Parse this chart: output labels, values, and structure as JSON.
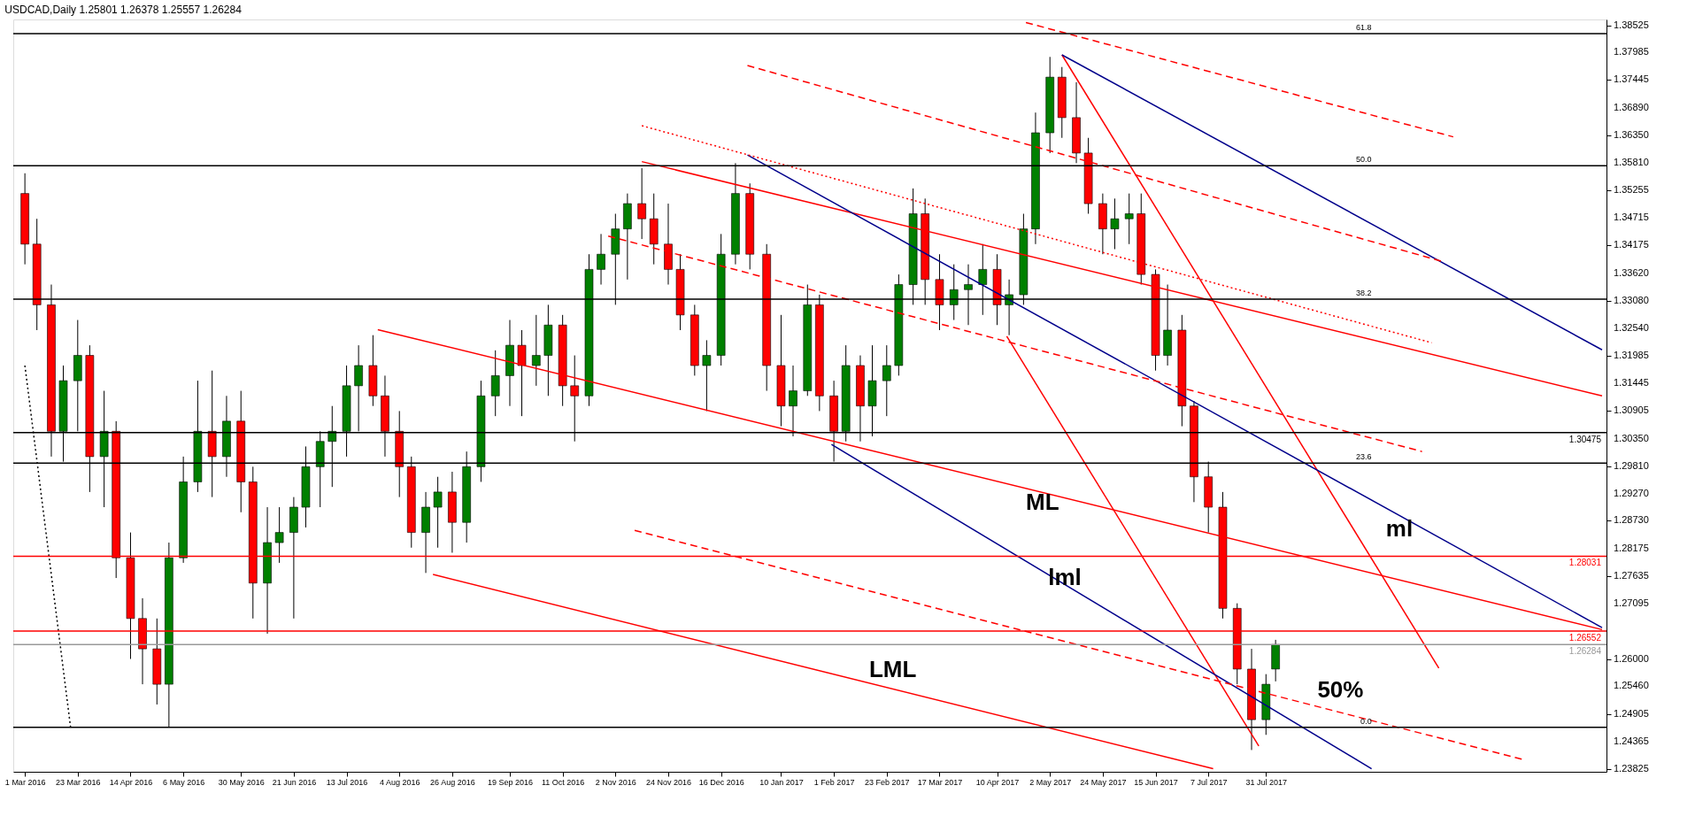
{
  "chart_data": {
    "type": "candlestick",
    "title": "USDCAD,Daily  1.25801 1.26378 1.25557 1.26284",
    "x": [
      "2016-03-01",
      "2016-03-06",
      "2016-03-12",
      "2016-03-17",
      "2016-03-23",
      "2016-03-28",
      "2016-04-03",
      "2016-04-08",
      "2016-04-14",
      "2016-04-19",
      "2016-04-25",
      "2016-04-30",
      "2016-05-06",
      "2016-05-12",
      "2016-05-18",
      "2016-05-24",
      "2016-05-30",
      "2016-06-04",
      "2016-06-10",
      "2016-06-15",
      "2016-06-21",
      "2016-06-26",
      "2016-07-02",
      "2016-07-07",
      "2016-07-13",
      "2016-07-18",
      "2016-07-24",
      "2016-07-29",
      "2016-08-04",
      "2016-08-09",
      "2016-08-15",
      "2016-08-20",
      "2016-08-26",
      "2016-09-01",
      "2016-09-07",
      "2016-09-13",
      "2016-09-19",
      "2016-09-24",
      "2016-09-30",
      "2016-10-05",
      "2016-10-11",
      "2016-10-16",
      "2016-10-22",
      "2016-10-27",
      "2016-11-02",
      "2016-11-07",
      "2016-11-13",
      "2016-11-18",
      "2016-11-24",
      "2016-11-29",
      "2016-12-05",
      "2016-12-10",
      "2016-12-16",
      "2016-12-22",
      "2016-12-28",
      "2017-01-04",
      "2017-01-10",
      "2017-01-15",
      "2017-01-21",
      "2017-01-26",
      "2017-02-01",
      "2017-02-06",
      "2017-02-12",
      "2017-02-17",
      "2017-02-23",
      "2017-02-28",
      "2017-03-06",
      "2017-03-11",
      "2017-03-17",
      "2017-03-23",
      "2017-03-29",
      "2017-04-04",
      "2017-04-10",
      "2017-04-15",
      "2017-04-21",
      "2017-04-26",
      "2017-05-02",
      "2017-05-07",
      "2017-05-13",
      "2017-05-18",
      "2017-05-24",
      "2017-05-29",
      "2017-06-04",
      "2017-06-09",
      "2017-06-15",
      "2017-06-20",
      "2017-06-26",
      "2017-07-01",
      "2017-07-07",
      "2017-07-13",
      "2017-07-19",
      "2017-07-25",
      "2017-07-31",
      "2017-08-04"
    ],
    "ohlc": [
      [
        1.352,
        1.356,
        1.338,
        1.342
      ],
      [
        1.342,
        1.347,
        1.325,
        1.33
      ],
      [
        1.33,
        1.334,
        1.3,
        1.305
      ],
      [
        1.305,
        1.318,
        1.299,
        1.315
      ],
      [
        1.315,
        1.327,
        1.305,
        1.32
      ],
      [
        1.32,
        1.322,
        1.293,
        1.3
      ],
      [
        1.3,
        1.313,
        1.29,
        1.305
      ],
      [
        1.305,
        1.307,
        1.276,
        1.28
      ],
      [
        1.28,
        1.285,
        1.26,
        1.268
      ],
      [
        1.268,
        1.272,
        1.255,
        1.262
      ],
      [
        1.262,
        1.268,
        1.251,
        1.255
      ],
      [
        1.255,
        1.283,
        1.2466,
        1.28
      ],
      [
        1.28,
        1.3,
        1.279,
        1.295
      ],
      [
        1.295,
        1.315,
        1.293,
        1.305
      ],
      [
        1.305,
        1.317,
        1.292,
        1.3
      ],
      [
        1.3,
        1.312,
        1.296,
        1.307
      ],
      [
        1.307,
        1.313,
        1.289,
        1.295
      ],
      [
        1.295,
        1.298,
        1.268,
        1.275
      ],
      [
        1.275,
        1.29,
        1.265,
        1.283
      ],
      [
        1.283,
        1.29,
        1.279,
        1.285
      ],
      [
        1.285,
        1.292,
        1.268,
        1.29
      ],
      [
        1.29,
        1.302,
        1.286,
        1.298
      ],
      [
        1.298,
        1.305,
        1.29,
        1.303
      ],
      [
        1.303,
        1.31,
        1.294,
        1.305
      ],
      [
        1.305,
        1.318,
        1.3,
        1.314
      ],
      [
        1.314,
        1.322,
        1.305,
        1.318
      ],
      [
        1.318,
        1.324,
        1.31,
        1.312
      ],
      [
        1.312,
        1.316,
        1.3,
        1.305
      ],
      [
        1.305,
        1.309,
        1.292,
        1.298
      ],
      [
        1.298,
        1.3,
        1.282,
        1.285
      ],
      [
        1.285,
        1.293,
        1.277,
        1.29
      ],
      [
        1.29,
        1.296,
        1.282,
        1.293
      ],
      [
        1.293,
        1.297,
        1.281,
        1.287
      ],
      [
        1.287,
        1.301,
        1.283,
        1.298
      ],
      [
        1.298,
        1.315,
        1.295,
        1.312
      ],
      [
        1.312,
        1.321,
        1.308,
        1.316
      ],
      [
        1.316,
        1.327,
        1.31,
        1.322
      ],
      [
        1.322,
        1.325,
        1.308,
        1.318
      ],
      [
        1.318,
        1.328,
        1.314,
        1.32
      ],
      [
        1.32,
        1.33,
        1.312,
        1.326
      ],
      [
        1.326,
        1.328,
        1.31,
        1.314
      ],
      [
        1.314,
        1.32,
        1.303,
        1.312
      ],
      [
        1.312,
        1.34,
        1.31,
        1.337
      ],
      [
        1.337,
        1.344,
        1.334,
        1.34
      ],
      [
        1.34,
        1.348,
        1.33,
        1.345
      ],
      [
        1.345,
        1.352,
        1.335,
        1.35
      ],
      [
        1.35,
        1.357,
        1.343,
        1.347
      ],
      [
        1.347,
        1.352,
        1.338,
        1.342
      ],
      [
        1.342,
        1.35,
        1.334,
        1.337
      ],
      [
        1.337,
        1.34,
        1.325,
        1.328
      ],
      [
        1.328,
        1.33,
        1.316,
        1.318
      ],
      [
        1.318,
        1.323,
        1.309,
        1.32
      ],
      [
        1.32,
        1.344,
        1.318,
        1.34
      ],
      [
        1.34,
        1.358,
        1.338,
        1.352
      ],
      [
        1.352,
        1.354,
        1.337,
        1.34
      ],
      [
        1.34,
        1.342,
        1.313,
        1.318
      ],
      [
        1.318,
        1.328,
        1.306,
        1.31
      ],
      [
        1.31,
        1.318,
        1.304,
        1.313
      ],
      [
        1.313,
        1.334,
        1.312,
        1.33
      ],
      [
        1.33,
        1.332,
        1.309,
        1.312
      ],
      [
        1.312,
        1.315,
        1.299,
        1.305
      ],
      [
        1.305,
        1.322,
        1.303,
        1.318
      ],
      [
        1.318,
        1.32,
        1.303,
        1.31
      ],
      [
        1.31,
        1.322,
        1.304,
        1.315
      ],
      [
        1.315,
        1.322,
        1.308,
        1.318
      ],
      [
        1.318,
        1.336,
        1.316,
        1.334
      ],
      [
        1.334,
        1.353,
        1.33,
        1.348
      ],
      [
        1.348,
        1.351,
        1.33,
        1.335
      ],
      [
        1.335,
        1.34,
        1.325,
        1.33
      ],
      [
        1.33,
        1.338,
        1.327,
        1.333
      ],
      [
        1.333,
        1.338,
        1.326,
        1.334
      ],
      [
        1.334,
        1.342,
        1.328,
        1.337
      ],
      [
        1.337,
        1.34,
        1.326,
        1.33
      ],
      [
        1.33,
        1.335,
        1.324,
        1.332
      ],
      [
        1.332,
        1.348,
        1.33,
        1.345
      ],
      [
        1.345,
        1.368,
        1.342,
        1.364
      ],
      [
        1.364,
        1.379,
        1.36,
        1.375
      ],
      [
        1.375,
        1.377,
        1.363,
        1.367
      ],
      [
        1.367,
        1.374,
        1.358,
        1.36
      ],
      [
        1.36,
        1.363,
        1.348,
        1.35
      ],
      [
        1.35,
        1.352,
        1.34,
        1.345
      ],
      [
        1.345,
        1.351,
        1.341,
        1.347
      ],
      [
        1.347,
        1.352,
        1.342,
        1.348
      ],
      [
        1.348,
        1.352,
        1.334,
        1.336
      ],
      [
        1.336,
        1.337,
        1.317,
        1.32
      ],
      [
        1.32,
        1.334,
        1.318,
        1.325
      ],
      [
        1.325,
        1.328,
        1.306,
        1.31
      ],
      [
        1.31,
        1.311,
        1.291,
        1.296
      ],
      [
        1.296,
        1.299,
        1.285,
        1.29
      ],
      [
        1.29,
        1.293,
        1.268,
        1.27
      ],
      [
        1.27,
        1.271,
        1.255,
        1.258
      ],
      [
        1.258,
        1.262,
        1.242,
        1.248
      ],
      [
        1.248,
        1.257,
        1.245,
        1.255
      ],
      [
        1.25801,
        1.26378,
        1.25557,
        1.26284
      ]
    ],
    "series": [
      {
        "type": "line",
        "color": "#ff0000",
        "line_style": "solid",
        "x": [
          "2016-11-13",
          "2017-12-18"
        ],
        "values": [
          1.3583,
          1.312
        ]
      },
      {
        "type": "line",
        "color": "#ff0000",
        "line_style": "solid",
        "x": [
          "2016-07-26",
          "2017-12-18"
        ],
        "values": [
          1.3251,
          1.2658
        ]
      },
      {
        "type": "line",
        "color": "#ff0000",
        "line_style": "solid",
        "x": [
          "2016-08-18",
          "2017-07-09"
        ],
        "values": [
          1.2767,
          1.2383
        ]
      },
      {
        "type": "line",
        "color": "#ff0000",
        "line_style": "solid",
        "x": [
          "2017-04-14",
          "2017-07-28"
        ],
        "values": [
          1.3238,
          1.2428
        ]
      },
      {
        "type": "line",
        "color": "#ff0000",
        "line_style": "solid",
        "x": [
          "2017-05-07",
          "2017-10-11"
        ],
        "values": [
          1.3794,
          1.2582
        ]
      },
      {
        "type": "line",
        "color": "#00008b",
        "line_style": "solid",
        "x": [
          "2016-12-27",
          "2017-12-18"
        ],
        "values": [
          1.3596,
          1.2662
        ]
      },
      {
        "type": "line",
        "color": "#00008b",
        "line_style": "solid",
        "x": [
          "2017-05-07",
          "2017-12-18"
        ],
        "values": [
          1.3794,
          1.3211
        ]
      },
      {
        "type": "line",
        "color": "#00008b",
        "line_style": "solid",
        "x": [
          "2017-01-31",
          "2017-09-13"
        ],
        "values": [
          1.3024,
          1.2383
        ]
      },
      {
        "type": "line",
        "color": "#ff0000",
        "line_style": "dashed",
        "x": [
          "2016-12-27",
          "2017-10-13"
        ],
        "values": [
          1.3773,
          1.3385
        ]
      },
      {
        "type": "line",
        "color": "#ff0000",
        "line_style": "dashed",
        "x": [
          "2017-04-22",
          "2017-10-17"
        ],
        "values": [
          1.3858,
          1.3632
        ]
      },
      {
        "type": "line",
        "color": "#ff0000",
        "line_style": "dotted",
        "x": [
          "2016-11-13",
          "2017-10-08"
        ],
        "values": [
          1.3654,
          1.3225
        ]
      },
      {
        "type": "line",
        "color": "#ff0000",
        "line_style": "dashed",
        "x": [
          "2016-10-30",
          "2017-10-04"
        ],
        "values": [
          1.3436,
          1.301
        ]
      },
      {
        "type": "line",
        "color": "#ff0000",
        "line_style": "dashed",
        "x": [
          "2016-11-10",
          "2017-11-16"
        ],
        "values": [
          1.2854,
          1.24
        ]
      },
      {
        "type": "line",
        "color": "#000000",
        "line_style": "dotted",
        "x": [
          "2016-03-01",
          "2016-03-20"
        ],
        "values": [
          1.318,
          1.2466
        ]
      }
    ],
    "ref_lines": [
      {
        "axis": "y",
        "value": 1.3836,
        "color": "#000000"
      },
      {
        "axis": "y",
        "value": 1.3575,
        "color": "#000000"
      },
      {
        "axis": "y",
        "value": 1.3311,
        "color": "#000000"
      },
      {
        "axis": "y",
        "value": 1.2987,
        "color": "#000000"
      },
      {
        "axis": "y",
        "value": 1.2465,
        "color": "#000000"
      },
      {
        "axis": "y",
        "value": 1.30475,
        "label": "1.30475",
        "color": "#000000"
      },
      {
        "axis": "y",
        "value": 1.28031,
        "label": "1.28031",
        "color": "#ff0000"
      },
      {
        "axis": "y",
        "value": 1.26552,
        "label": "1.26552",
        "color": "#ff0000"
      },
      {
        "axis": "y",
        "value": 1.26284,
        "label": "1.26284",
        "color": "#999999"
      }
    ],
    "annotations": [
      "ML",
      "ml",
      "lml",
      "LML",
      "50%",
      {
        "text": "61.8",
        "x": "2017-09-13",
        "y": 1.3836
      },
      {
        "text": "50.0",
        "x": "2017-09-13",
        "y": 1.3575
      },
      {
        "text": "38.2",
        "x": "2017-09-13",
        "y": 1.3311
      },
      {
        "text": "23.6",
        "x": "2017-09-13",
        "y": 1.2987
      },
      {
        "text": "0.0",
        "x": "2017-09-13",
        "y": 1.2465
      }
    ],
    "xlim": [
      "2016-02-27",
      "2017-12-18"
    ],
    "ylim": [
      1.2377,
      1.3864
    ],
    "xticks": [
      {
        "value": "2016-03-01",
        "label": "1 Mar 2016"
      },
      {
        "value": "2016-03-23",
        "label": "23 Mar 2016"
      },
      {
        "value": "2016-04-14",
        "label": "14 Apr 2016"
      },
      {
        "value": "2016-05-06",
        "label": "6 May 2016"
      },
      {
        "value": "2016-05-30",
        "label": "30 May 2016"
      },
      {
        "value": "2016-06-21",
        "label": "21 Jun 2016"
      },
      {
        "value": "2016-07-13",
        "label": "13 Jul 2016"
      },
      {
        "value": "2016-08-04",
        "label": "4 Aug 2016"
      },
      {
        "value": "2016-08-26",
        "label": "26 Aug 2016"
      },
      {
        "value": "2016-09-19",
        "label": "19 Sep 2016"
      },
      {
        "value": "2016-10-11",
        "label": "11 Oct 2016"
      },
      {
        "value": "2016-11-02",
        "label": "2 Nov 2016"
      },
      {
        "value": "2016-11-24",
        "label": "24 Nov 2016"
      },
      {
        "value": "2016-12-16",
        "label": "16 Dec 2016"
      },
      {
        "value": "2017-01-10",
        "label": "10 Jan 2017"
      },
      {
        "value": "2017-02-01",
        "label": "1 Feb 2017"
      },
      {
        "value": "2017-02-23",
        "label": "23 Feb 2017"
      },
      {
        "value": "2017-03-17",
        "label": "17 Mar 2017"
      },
      {
        "value": "2017-04-10",
        "label": "10 Apr 2017"
      },
      {
        "value": "2017-05-02",
        "label": "2 May 2017"
      },
      {
        "value": "2017-05-24",
        "label": "24 May 2017"
      },
      {
        "value": "2017-06-15",
        "label": "15 Jun 2017"
      },
      {
        "value": "2017-07-07",
        "label": "7 Jul 2017"
      },
      {
        "value": "2017-07-31",
        "label": "31 Jul 2017"
      }
    ],
    "yticks": [
      1.38525,
      1.37985,
      1.37445,
      {
        "value": 1.3689,
        "label": "1.36890"
      },
      {
        "value": 1.3635,
        "label": "1.36350"
      },
      {
        "value": 1.3581,
        "label": "1.35810"
      },
      1.35255,
      1.34715,
      1.34175,
      {
        "value": 1.3362,
        "label": "1.33620"
      },
      {
        "value": 1.3308,
        "label": "1.33080"
      },
      {
        "value": 1.3254,
        "label": "1.32540"
      },
      1.31985,
      1.31445,
      1.30905,
      {
        "value": 1.3035,
        "label": "1.30350"
      },
      {
        "value": 1.2981,
        "label": "1.29810"
      },
      {
        "value": 1.2927,
        "label": "1.29270"
      },
      {
        "value": 1.2873,
        "label": "1.28730"
      },
      1.28175,
      1.27635,
      1.27095,
      {
        "value": 1.26,
        "label": "1.26000"
      },
      {
        "value": 1.2546,
        "label": "1.25460"
      },
      1.24905,
      1.24365,
      1.23825
    ],
    "grid": false
  }
}
